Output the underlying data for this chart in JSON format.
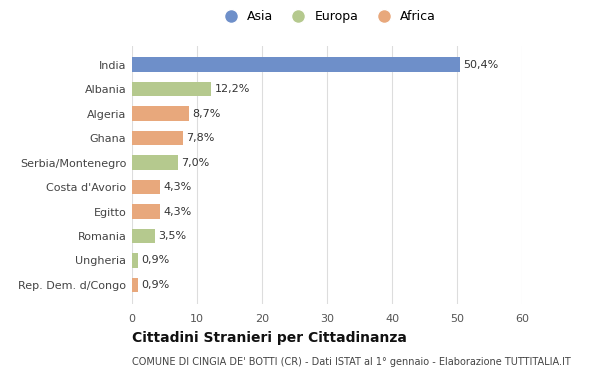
{
  "categories": [
    "India",
    "Albania",
    "Algeria",
    "Ghana",
    "Serbia/Montenegro",
    "Costa d'Avorio",
    "Egitto",
    "Romania",
    "Ungheria",
    "Rep. Dem. d/Congo"
  ],
  "values": [
    50.4,
    12.2,
    8.7,
    7.8,
    7.0,
    4.3,
    4.3,
    3.5,
    0.9,
    0.9
  ],
  "labels": [
    "50,4%",
    "12,2%",
    "8,7%",
    "7,8%",
    "7,0%",
    "4,3%",
    "4,3%",
    "3,5%",
    "0,9%",
    "0,9%"
  ],
  "continents": [
    "Asia",
    "Europa",
    "Africa",
    "Africa",
    "Europa",
    "Africa",
    "Africa",
    "Europa",
    "Europa",
    "Africa"
  ],
  "colors": {
    "Asia": "#6e8fc9",
    "Europa": "#b5c98e",
    "Africa": "#e8a87c"
  },
  "legend_labels": [
    "Asia",
    "Europa",
    "Africa"
  ],
  "xlim": [
    0,
    60
  ],
  "xticks": [
    0,
    10,
    20,
    30,
    40,
    50,
    60
  ],
  "title": "Cittadini Stranieri per Cittadinanza",
  "subtitle": "COMUNE DI CINGIA DE' BOTTI (CR) - Dati ISTAT al 1° gennaio - Elaborazione TUTTITALIA.IT",
  "background_color": "#ffffff",
  "grid_color": "#dddddd",
  "bar_height": 0.6
}
